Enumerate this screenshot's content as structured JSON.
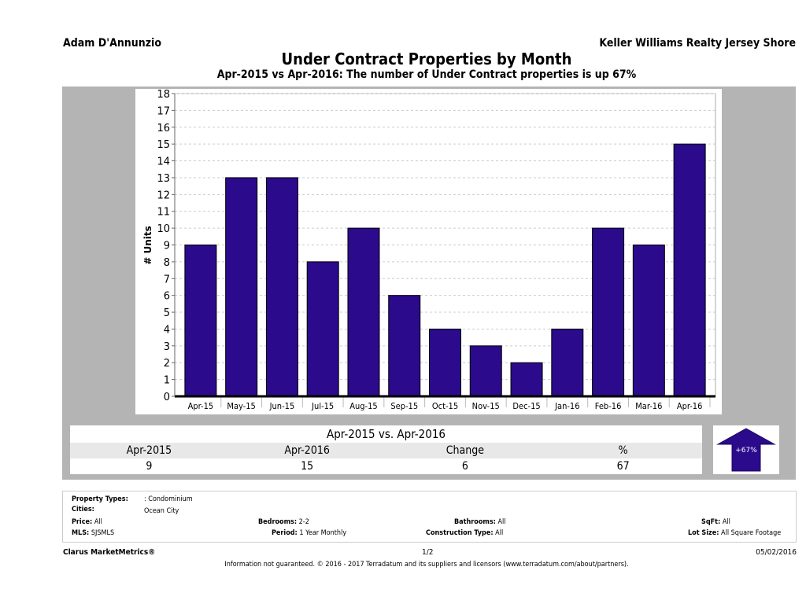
{
  "header": {
    "agent": "Adam D'Annunzio",
    "brokerage": "Keller Williams Realty Jersey Shore",
    "title": "Under Contract Properties by Month",
    "subtitle": "Apr-2015 vs Apr-2016: The number of Under Contract  properties is up 67%"
  },
  "chart_data": {
    "type": "bar",
    "title": "Under Contract Properties by Month",
    "xlabel": "",
    "ylabel": "# Units",
    "ylim": [
      0,
      18
    ],
    "yticks": [
      0,
      1,
      2,
      3,
      4,
      5,
      6,
      7,
      8,
      9,
      10,
      11,
      12,
      13,
      14,
      15,
      16,
      17,
      18
    ],
    "grid": true,
    "categories": [
      "Apr-15",
      "May-15",
      "Jun-15",
      "Jul-15",
      "Aug-15",
      "Sep-15",
      "Oct-15",
      "Nov-15",
      "Dec-15",
      "Jan-16",
      "Feb-16",
      "Mar-16",
      "Apr-16"
    ],
    "values": [
      9,
      13,
      13,
      8,
      10,
      6,
      4,
      3,
      2,
      4,
      10,
      9,
      15
    ],
    "bar_color": "#2b0a8c"
  },
  "summary": {
    "title": "Apr-2015 vs. Apr-2016",
    "headers": [
      "Apr-2015",
      "Apr-2016",
      "Change",
      "%"
    ],
    "values": [
      "9",
      "15",
      "6",
      "67"
    ],
    "badge": "+67%",
    "badge_direction": "up"
  },
  "info": {
    "property_types_label": "Property Types:",
    "property_types": ": Condominium",
    "cities_label": "Cities:",
    "cities": "Ocean City",
    "price_label": "Price:",
    "price": "All",
    "bedrooms_label": "Bedrooms:",
    "bedrooms": "2-2",
    "bathrooms_label": "Bathrooms:",
    "bathrooms": "All",
    "sqft_label": "SqFt:",
    "sqft": "All",
    "mls_label": "MLS:",
    "mls": "SJSMLS",
    "period_label": "Period:",
    "period": "1 Year Monthly",
    "construction_label": "Construction Type:",
    "construction": "All",
    "lotsize_label": "Lot Size:",
    "lotsize": "All Square Footage"
  },
  "footer": {
    "brand": "Clarus MarketMetrics®",
    "page": "1/2",
    "date": "05/02/2016",
    "disclaimer": "Information not guaranteed. © 2016 - 2017 Terradatum and its suppliers and licensors (www.terradatum.com/about/partners)."
  }
}
